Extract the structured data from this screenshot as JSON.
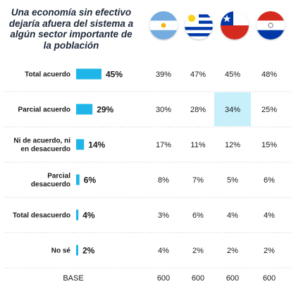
{
  "title_lines": [
    "Una economía sin efectivo",
    "dejaría afuera del sistema a",
    "algún sector importante de",
    "la población"
  ],
  "colors": {
    "bar": "#1fb5e8",
    "highlight": "#c8f0fb",
    "grid": "#cfcfcf"
  },
  "countries": [
    {
      "name": "Argentina",
      "icon": "argentina-flag-icon"
    },
    {
      "name": "Uruguay",
      "icon": "uruguay-flag-icon"
    },
    {
      "name": "Chile",
      "icon": "chile-flag-icon"
    },
    {
      "name": "Paraguay",
      "icon": "paraguay-flag-icon"
    }
  ],
  "chart_data": {
    "type": "bar",
    "title": "Una economía sin efectivo dejaría afuera del sistema a algún sector importante de la población",
    "categories": [
      [
        "Total acuerdo"
      ],
      [
        "Parcial acuerdo"
      ],
      [
        "Ni de acuerdo, ni",
        "en desacuerdo"
      ],
      [
        "Parcial",
        "desacuerdo"
      ],
      [
        "Total desacuerdo"
      ],
      [
        "No sé"
      ]
    ],
    "values": [
      45,
      29,
      14,
      6,
      4,
      2
    ],
    "value_labels": [
      "45%",
      "29%",
      "14%",
      "6%",
      "4%",
      "2%"
    ],
    "xlim": [
      0,
      45
    ],
    "table": {
      "columns": [
        "Argentina",
        "Uruguay",
        "Chile",
        "Paraguay"
      ],
      "rows": [
        [
          "39%",
          "47%",
          "45%",
          "48%"
        ],
        [
          "30%",
          "28%",
          "34%",
          "25%"
        ],
        [
          "17%",
          "11%",
          "12%",
          "15%"
        ],
        [
          "8%",
          "7%",
          "5%",
          "6%"
        ],
        [
          "3%",
          "6%",
          "4%",
          "4%"
        ],
        [
          "4%",
          "2%",
          "2%",
          "2%"
        ]
      ],
      "highlighted_cell": {
        "row": 1,
        "col": 2
      }
    },
    "base": {
      "label": "BASE",
      "values": [
        "600",
        "600",
        "600",
        "600"
      ]
    }
  }
}
